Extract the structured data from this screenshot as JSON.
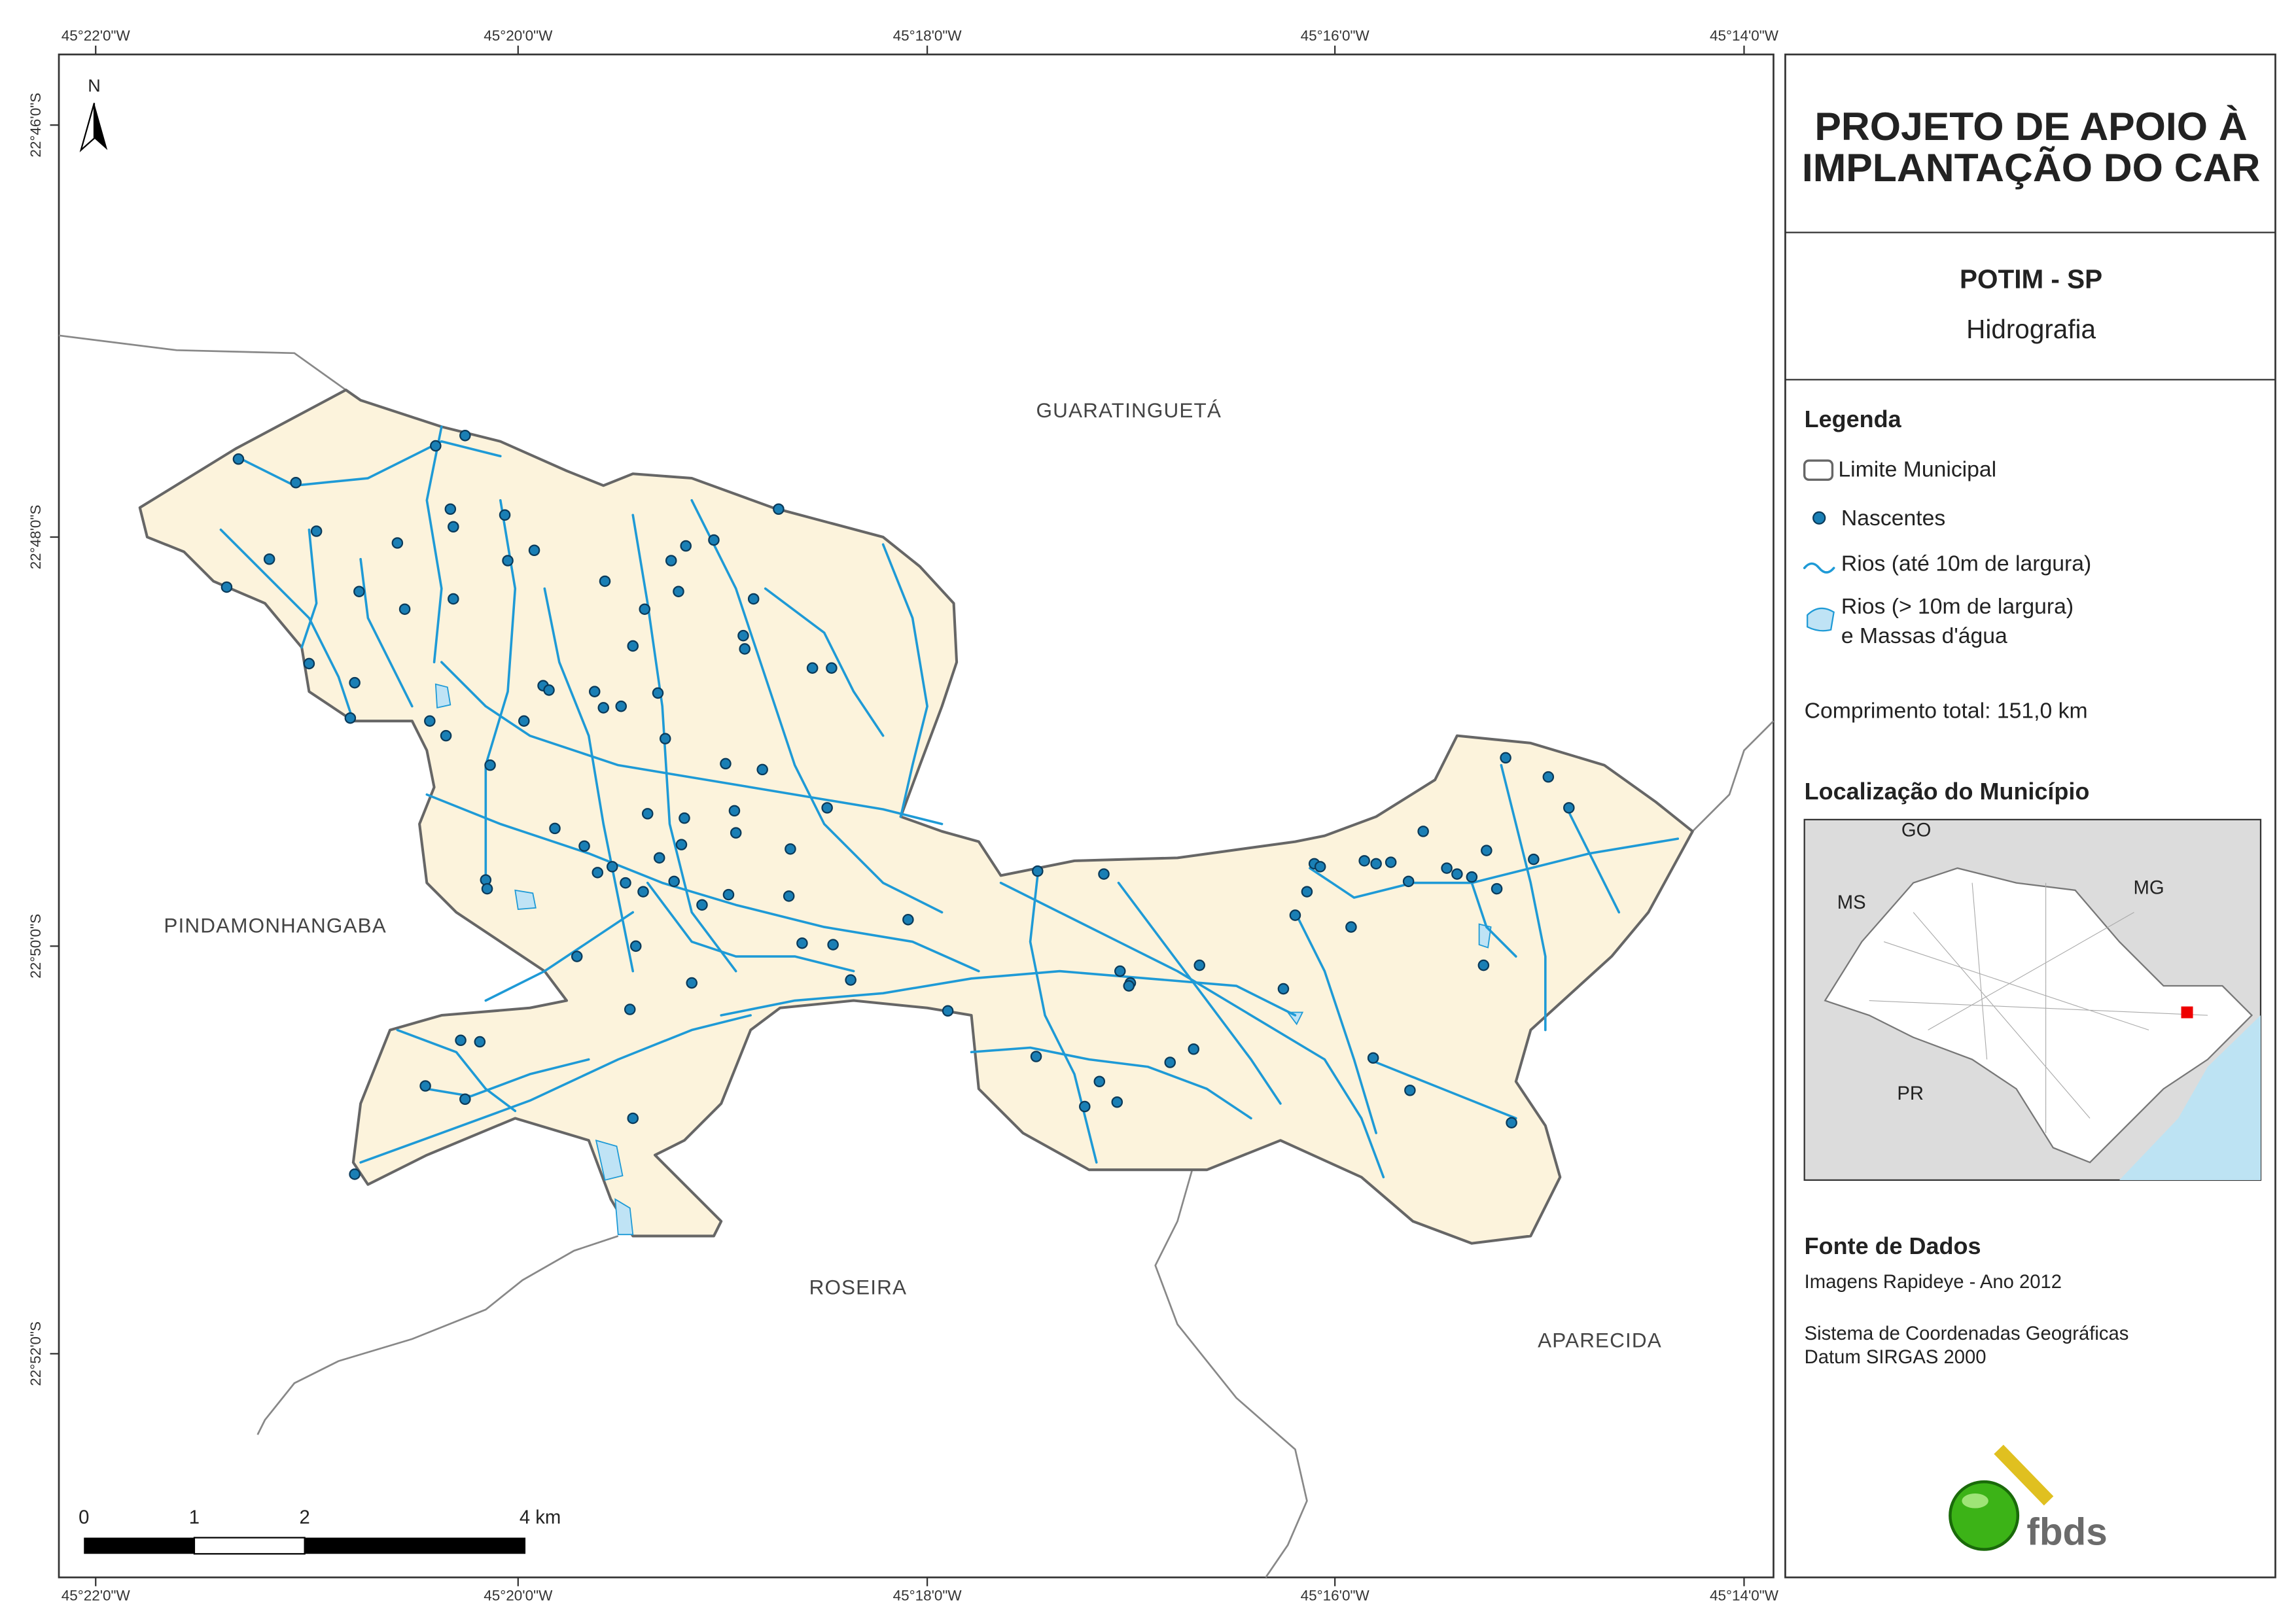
{
  "map": {
    "lon_labels": [
      "45°22'0\"W",
      "45°20'0\"W",
      "45°18'0\"W",
      "45°16'0\"W",
      "45°14'0\"W"
    ],
    "lat_labels": [
      "22°46'0\"S",
      "22°48'0\"S",
      "22°50'0\"S",
      "22°52'0\"S"
    ],
    "north": "N",
    "places": [
      "GUARATINGUETÁ",
      "PINDAMONHANGABA",
      "ROSEIRA",
      "APARECIDA"
    ],
    "scale_labels": [
      "0",
      "1",
      "2",
      "4 km"
    ]
  },
  "panel": {
    "title": [
      "PROJETO DE APOIO À",
      "IMPLANTAÇÃO DO CAR"
    ],
    "subtitle": "POTIM - SP",
    "theme": "Hidrografia",
    "legend_title": "Legenda",
    "legend": [
      "Limite Municipal",
      "Nascentes",
      "Rios (até 10m de largura)",
      "Rios (> 10m de largura)",
      "e Massas d'água"
    ],
    "length": "Comprimento total:  151,0 km",
    "location_title": "Localização do Município",
    "states": [
      "GO",
      "MS",
      "MG",
      "PR"
    ],
    "source_title": "Fonte de Dados",
    "source": [
      "Imagens Rapideye - Ano 2012",
      "Sistema de Coordenadas Geográficas",
      "Datum SIRGAS 2000"
    ],
    "logo": "fbds"
  }
}
